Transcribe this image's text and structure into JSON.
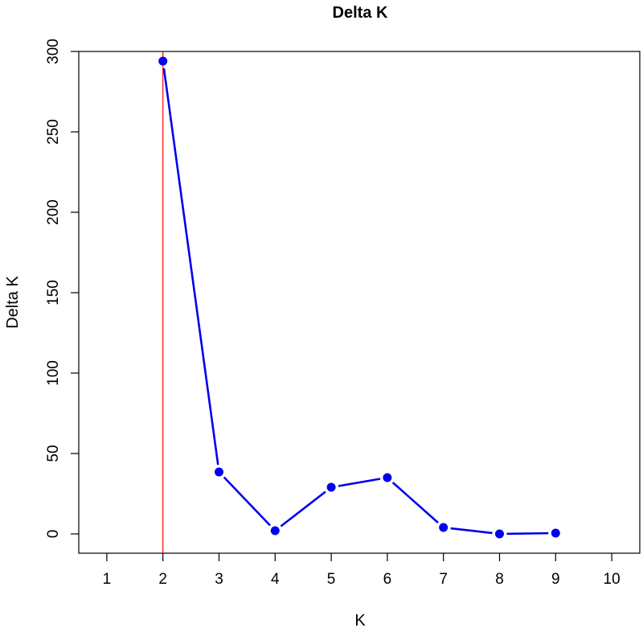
{
  "chart_data": {
    "type": "line",
    "title": "Delta K",
    "xlabel": "K",
    "ylabel": "Delta K",
    "xlim": [
      0.5,
      10.5
    ],
    "ylim": [
      -12,
      300
    ],
    "x_ticks": [
      1,
      2,
      3,
      4,
      5,
      6,
      7,
      8,
      9,
      10
    ],
    "y_ticks": [
      0,
      50,
      100,
      150,
      200,
      250,
      300
    ],
    "grid": false,
    "legend": "none",
    "series": [
      {
        "x": [
          2,
          3,
          4,
          5,
          6,
          7,
          8,
          9
        ],
        "values": [
          294,
          38.5,
          2,
          29,
          35,
          4,
          0,
          0.5
        ],
        "color": "#0000ee"
      }
    ],
    "reference_line": {
      "axis": "x",
      "value": 2,
      "color": "#ff0000"
    }
  }
}
